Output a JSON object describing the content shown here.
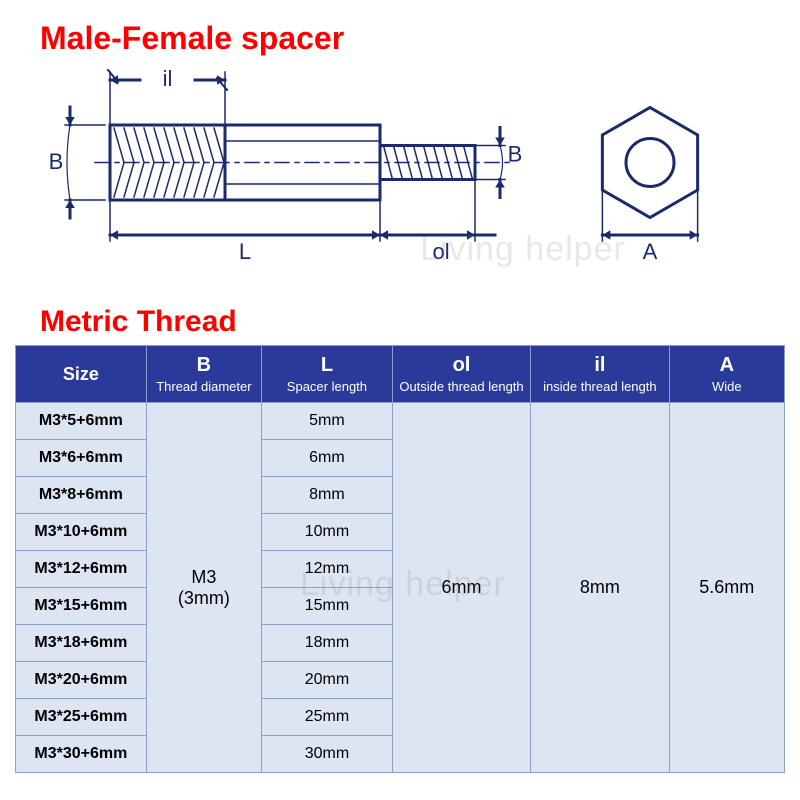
{
  "titles": {
    "main": "Male-Female spacer",
    "section": "Metric Thread",
    "color": "#ff0000"
  },
  "watermark": "Living helper",
  "diagram": {
    "stroke": "#1a2a6c",
    "stroke_width": 3,
    "labels": {
      "il": "il",
      "B_left": "B",
      "B_right": "B",
      "L": "L",
      "ol": "ol",
      "A": "A"
    },
    "label_font": 22
  },
  "table": {
    "header_bg": "#2a3a9a",
    "header_fg": "#ffffff",
    "cell_bg": "#dde5f2",
    "border_color": "#8aa0c8",
    "columns": [
      {
        "main": "Size",
        "sub": ""
      },
      {
        "main": "B",
        "sub": "Thread diameter"
      },
      {
        "main": "L",
        "sub": "Spacer length"
      },
      {
        "main": "ol",
        "sub": "Outside thread length"
      },
      {
        "main": "il",
        "sub": "inside thread length"
      },
      {
        "main": "A",
        "sub": "Wide"
      }
    ],
    "col_widths_pct": [
      17,
      15,
      17,
      18,
      18,
      15
    ],
    "sizes": [
      "M3*5+6mm",
      "M3*6+6mm",
      "M3*8+6mm",
      "M3*10+6mm",
      "M3*12+6mm",
      "M3*15+6mm",
      "M3*18+6mm",
      "M3*20+6mm",
      "M3*25+6mm",
      "M3*30+6mm"
    ],
    "L_values": [
      "5mm",
      "6mm",
      "8mm",
      "10mm",
      "12mm",
      "15mm",
      "18mm",
      "20mm",
      "25mm",
      "30mm"
    ],
    "B_value": "M3 (3mm)",
    "ol_value": "6mm",
    "il_value": "8mm",
    "A_value": "5.6mm"
  }
}
